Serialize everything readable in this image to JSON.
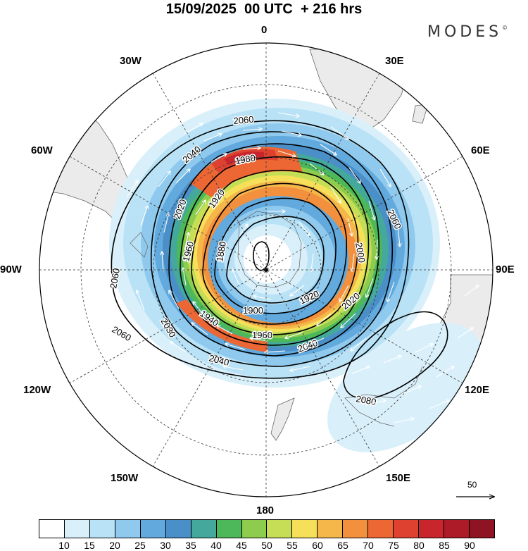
{
  "header": {
    "title": "15/09/2025  00 UTC  + 216 hrs",
    "brand": "MODES",
    "brand_mark": "©"
  },
  "map": {
    "projection": "Southern hemisphere polar stereographic",
    "longitude_labels": {
      "lon_0": "0",
      "lon_30e": "30E",
      "lon_60e": "60E",
      "lon_90e": "90E",
      "lon_120e": "120E",
      "lon_150e": "150E",
      "lon_180": "180",
      "lon_150w": "150W",
      "lon_120w": "120W",
      "lon_90w": "90W",
      "lon_60w": "60W",
      "lon_30w": "30W"
    },
    "contour_labels": [
      "2060",
      "2040",
      "1980",
      "1920",
      "2020",
      "1960",
      "1880",
      "2000",
      "2060",
      "2060",
      "1900",
      "1920",
      "2020",
      "2030",
      "1940",
      "1960",
      "2040",
      "2040",
      "2060",
      "2080"
    ],
    "reference_vector_label": "50",
    "colors": {
      "land": "#ebebeb",
      "coast": "#666666",
      "contour": "#000000",
      "grid": "#333333"
    }
  },
  "colorbar": {
    "ticks": [
      "10",
      "15",
      "20",
      "25",
      "30",
      "35",
      "40",
      "45",
      "50",
      "55",
      "60",
      "65",
      "70",
      "75",
      "80",
      "85",
      "90"
    ],
    "colors": [
      "#ffffff",
      "#d9f0fb",
      "#b9e2f6",
      "#8fcaee",
      "#62a9dd",
      "#4a8fc8",
      "#45a89c",
      "#4cb85a",
      "#8dcc4d",
      "#c5de56",
      "#f6e05a",
      "#f5b74a",
      "#f2903d",
      "#ec6734",
      "#de4130",
      "#c8252c",
      "#ad1a28",
      "#8e1423"
    ]
  }
}
